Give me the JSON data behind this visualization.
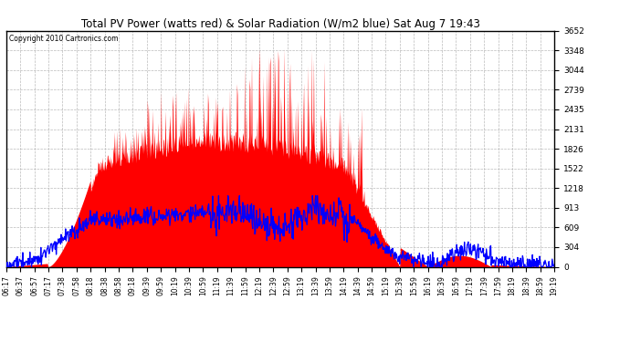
{
  "title": "Total PV Power (watts red) & Solar Radiation (W/m2 blue) Sat Aug 7 19:43",
  "copyright": "Copyright 2010 Cartronics.com",
  "y_ticks": [
    0.0,
    304.4,
    608.7,
    913.1,
    1217.5,
    1521.9,
    1826.2,
    2130.6,
    2435.0,
    2739.3,
    3043.7,
    3348.1,
    3652.4
  ],
  "y_max": 3652.4,
  "y_min": 0.0,
  "bg_color": "#ffffff",
  "plot_bg_color": "#ffffff",
  "grid_color": "#aaaaaa",
  "fill_color": "#ff0000",
  "line_color": "#0000ff",
  "title_color": "#000000",
  "x_labels": [
    "06:17",
    "06:37",
    "06:57",
    "07:17",
    "07:38",
    "07:58",
    "08:18",
    "08:38",
    "08:58",
    "09:18",
    "09:39",
    "09:59",
    "10:19",
    "10:39",
    "10:59",
    "11:19",
    "11:39",
    "11:59",
    "12:19",
    "12:39",
    "12:59",
    "13:19",
    "13:39",
    "13:59",
    "14:19",
    "14:39",
    "14:59",
    "15:19",
    "15:39",
    "15:59",
    "16:19",
    "16:39",
    "16:59",
    "17:19",
    "17:39",
    "17:59",
    "18:19",
    "18:39",
    "18:59",
    "19:19"
  ]
}
